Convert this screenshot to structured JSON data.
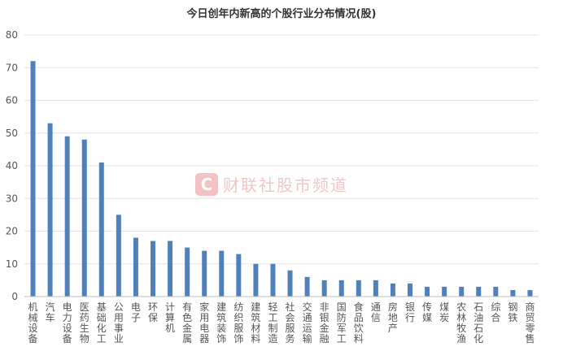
{
  "chart_data": {
    "type": "bar",
    "title": "今日创年内新高的个股行业分布情况(股)",
    "categories": [
      "机械设备",
      "汽车",
      "电力设备",
      "医药生物",
      "基础化工",
      "公用事业",
      "电子",
      "环保",
      "计算机",
      "有色金属",
      "家用电器",
      "建筑装饰",
      "纺织服饰",
      "建筑材料",
      "轻工制造",
      "社会服务",
      "交通运输",
      "非银金融",
      "国防军工",
      "食品饮料",
      "通信",
      "房地产",
      "银行",
      "传媒",
      "煤炭",
      "农林牧渔",
      "石油石化",
      "综合",
      "钢铁",
      "商贸零售"
    ],
    "values": [
      72,
      53,
      49,
      48,
      41,
      25,
      18,
      17,
      17,
      15,
      14,
      14,
      13,
      10,
      10,
      8,
      6,
      5,
      5,
      5,
      5,
      4,
      4,
      3,
      3,
      3,
      3,
      3,
      2,
      2
    ],
    "ylim": [
      0,
      80
    ],
    "yticks": [
      0,
      10,
      20,
      30,
      40,
      50,
      60,
      70,
      80
    ],
    "grid": true,
    "bar_color": "#4f81bd",
    "watermark": "财联社股市频道",
    "watermark_logo": "C"
  }
}
